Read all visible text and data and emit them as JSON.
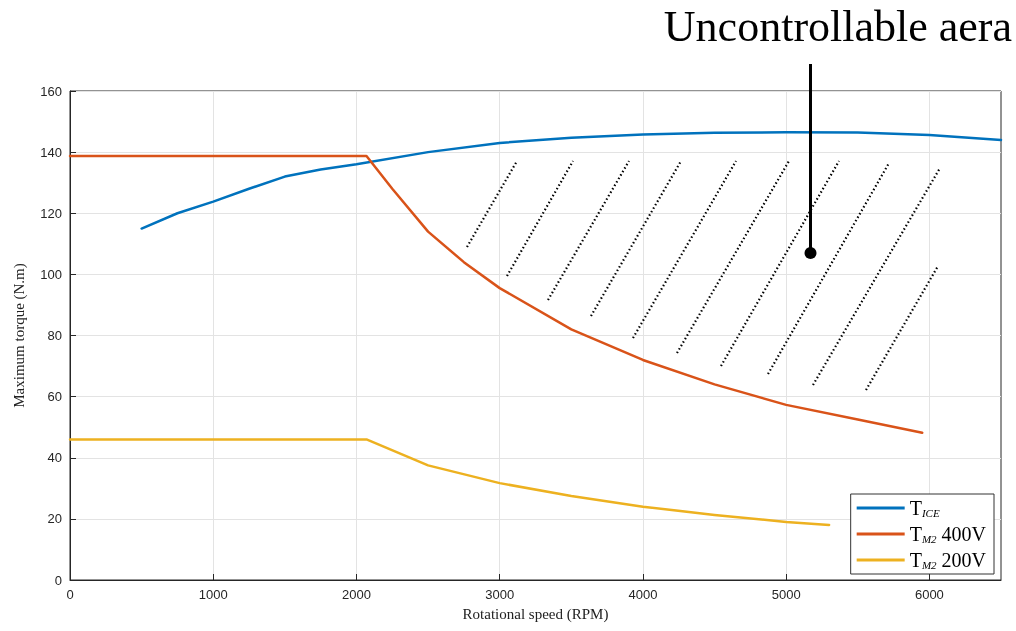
{
  "chart_data": {
    "type": "line",
    "xlabel": "Rotational speed (RPM)",
    "ylabel": "Maximum torque (N.m)",
    "xlim": [
      0,
      6500
    ],
    "xticks": [
      0,
      1000,
      2000,
      3000,
      4000,
      5000,
      6000
    ],
    "ylim": [
      0,
      160
    ],
    "yticks": [
      0,
      20,
      40,
      60,
      80,
      100,
      120,
      140,
      160
    ],
    "grid": true,
    "legend": "bottom right",
    "marker": "none",
    "line_style": "solid",
    "annotations": [
      {
        "text": "Uncontrollable aera",
        "x": 5170,
        "y": 107
      }
    ],
    "series": [
      {
        "name": "T$_{ICE}$",
        "color": "#0072bd",
        "x": [
          500,
          750,
          1000,
          1250,
          1500,
          1750,
          2000,
          2500,
          3000,
          3500,
          4000,
          4500,
          5000,
          5500,
          6000,
          6500
        ],
        "values": [
          115,
          120,
          123.8,
          128,
          132,
          134.3,
          136,
          140,
          143,
          144.7,
          145.8,
          146.3,
          146.5,
          146.4,
          145.6,
          144
        ]
      },
      {
        "name": "T$_{M2}$ 400V",
        "color": "#d95319",
        "x": [
          0,
          2070,
          2250,
          2500,
          2750,
          3000,
          3500,
          4000,
          4500,
          5000,
          5500,
          5950
        ],
        "values": [
          138.7,
          138.7,
          128,
          114,
          104,
          95.5,
          82,
          72,
          64,
          57.3,
          52.5,
          48.2
        ]
      },
      {
        "name": "T$_{M2}$ 200V",
        "color": "#edb120",
        "x": [
          0,
          2070,
          2500,
          3000,
          3500,
          4000,
          4500,
          5000,
          5300
        ],
        "values": [
          46,
          46,
          37.5,
          31.7,
          27.5,
          24,
          21.3,
          19,
          18
        ]
      }
    ]
  }
}
